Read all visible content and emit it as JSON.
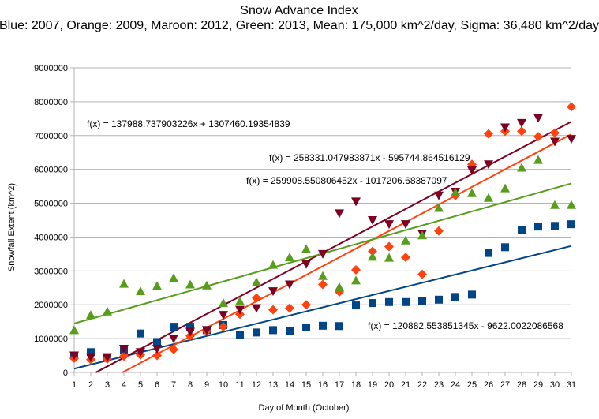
{
  "chart_data": {
    "type": "scatter",
    "title": "Snow Advance Index",
    "subtitle": "Blue: 2007, Orange: 2009, Maroon: 2012, Green: 2013, Mean: 175,000 km^2/day, Sigma: 36,480 km^2/day",
    "xlabel": "Day of Month (October)",
    "ylabel": "Snowfall Extent (km^2)",
    "xlim": [
      1,
      31
    ],
    "ylim": [
      0,
      9000000
    ],
    "x_ticks": [
      "1",
      "2",
      "3",
      "4",
      "5",
      "6",
      "7",
      "8",
      "9",
      "10",
      "11",
      "12",
      "13",
      "14",
      "15",
      "16",
      "17",
      "18",
      "19",
      "20",
      "21",
      "22",
      "23",
      "24",
      "25",
      "26",
      "27",
      "28",
      "29",
      "30",
      "31"
    ],
    "y_ticks": [
      "0",
      "1000000",
      "2000000",
      "3000000",
      "4000000",
      "5000000",
      "6000000",
      "7000000",
      "8000000",
      "9000000"
    ],
    "grid": "horizontal",
    "legend": "none",
    "series": [
      {
        "year": "2007",
        "color": "#004586",
        "marker": "square",
        "x": [
          1,
          2,
          3,
          4,
          5,
          6,
          7,
          8,
          9,
          10,
          11,
          12,
          13,
          14,
          15,
          16,
          17,
          18,
          19,
          20,
          21,
          22,
          23,
          24,
          25,
          26,
          27,
          28,
          29,
          30,
          31
        ],
        "values": [
          500000,
          600000,
          450000,
          650000,
          1150000,
          900000,
          1350000,
          1350000,
          1250000,
          1400000,
          1100000,
          1180000,
          1250000,
          1230000,
          1330000,
          1380000,
          1370000,
          1980000,
          2050000,
          2080000,
          2080000,
          2120000,
          2150000,
          2230000,
          2300000,
          3530000,
          3700000,
          4200000,
          4310000,
          4330000,
          4380000
        ]
      },
      {
        "year": "2009",
        "color": "#ff420e",
        "marker": "diamond",
        "x": [
          1,
          2,
          3,
          4,
          5,
          6,
          7,
          8,
          9,
          10,
          11,
          12,
          13,
          14,
          15,
          16,
          17,
          18,
          19,
          20,
          21,
          22,
          23,
          24,
          25,
          26,
          27,
          28,
          29,
          30,
          31
        ],
        "values": [
          420000,
          380000,
          400000,
          480000,
          520000,
          500000,
          680000,
          1080000,
          1220000,
          1350000,
          1720000,
          2200000,
          1850000,
          1900000,
          2000000,
          2600000,
          2380000,
          3030000,
          3580000,
          3720000,
          3400000,
          2900000,
          4180000,
          5230000,
          6150000,
          7050000,
          7130000,
          7130000,
          6970000,
          7080000,
          7850000
        ]
      },
      {
        "year": "2012",
        "color": "#7e0021",
        "marker": "triangle-down",
        "x": [
          1,
          2,
          3,
          4,
          5,
          6,
          7,
          8,
          9,
          10,
          11,
          12,
          13,
          14,
          15,
          16,
          17,
          18,
          19,
          20,
          21,
          22,
          23,
          24,
          25,
          26,
          27,
          28,
          29,
          30,
          31
        ],
        "values": [
          500000,
          450000,
          450000,
          700000,
          600000,
          700000,
          1000000,
          1200000,
          1250000,
          1700000,
          1850000,
          1900000,
          2400000,
          2600000,
          3200000,
          3500000,
          4700000,
          5050000,
          4500000,
          4380000,
          4380000,
          4100000,
          5230000,
          5340000,
          5970000,
          6150000,
          7240000,
          7370000,
          7520000,
          6820000,
          6900000
        ]
      },
      {
        "year": "2013",
        "color": "#579d1c",
        "marker": "triangle-up",
        "x": [
          1,
          2,
          3,
          4,
          5,
          6,
          7,
          8,
          9,
          10,
          11,
          12,
          13,
          14,
          15,
          16,
          17,
          18,
          19,
          20,
          21,
          22,
          23,
          24,
          25,
          26,
          27,
          28,
          29,
          30,
          31
        ],
        "values": [
          1250000,
          1700000,
          1800000,
          2620000,
          2400000,
          2560000,
          2790000,
          2600000,
          2570000,
          2050000,
          2100000,
          2670000,
          3180000,
          3400000,
          3650000,
          2850000,
          2520000,
          2720000,
          3420000,
          3390000,
          3900000,
          4050000,
          4860000,
          5320000,
          5300000,
          5160000,
          5440000,
          6050000,
          6280000,
          4950000,
          4950000
        ]
      }
    ],
    "trendlines": [
      {
        "color": "#004586",
        "slope": 120882.553851345,
        "intercept": -9622.0022086568,
        "label": "f(x) = 120882.553851345x - 9622.0022086568"
      },
      {
        "color": "#ff420e",
        "slope": 259908.550806452,
        "intercept": -1017206.68387097,
        "label": "f(x) = 259908.550806452x - 1017206.68387097"
      },
      {
        "color": "#7e0021",
        "slope": 258331.047983871,
        "intercept": -595744.864516129,
        "label": "f(x) = 258331.047983871x - 595744.864516129"
      },
      {
        "color": "#579d1c",
        "slope": 137988.737903226,
        "intercept": 1307460.19354839,
        "label": "f(x) = 137988.737903226x + 1307460.19354839"
      }
    ]
  }
}
